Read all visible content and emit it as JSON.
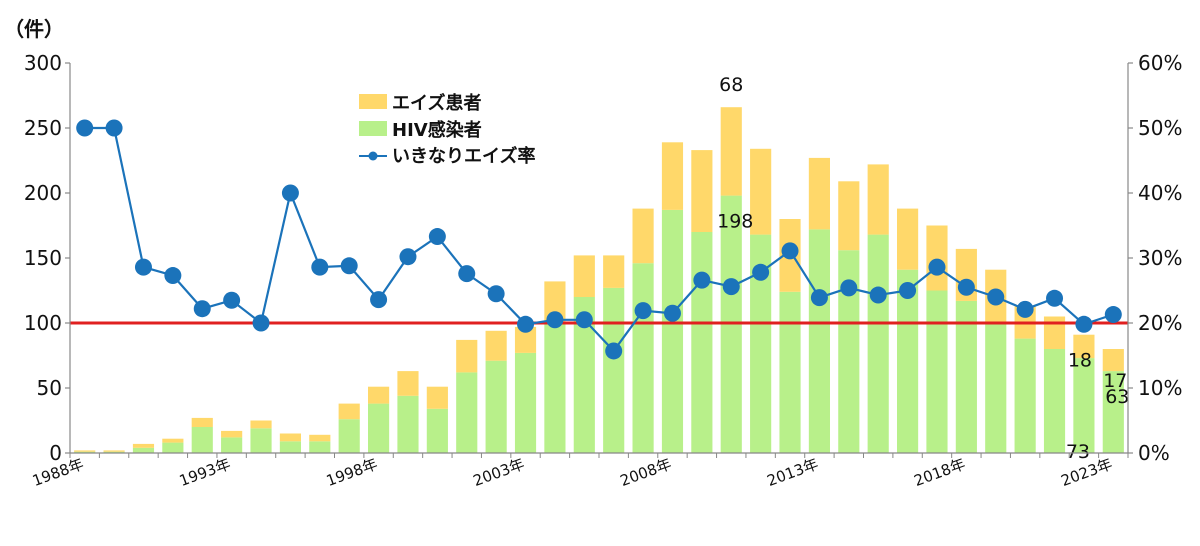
{
  "chart_data": {
    "type": "bar",
    "stacked": true,
    "y_unit_label": "（件）",
    "ylim": [
      0,
      300
    ],
    "y_ticks": [
      "0",
      "50",
      "100",
      "150",
      "200",
      "250",
      "300"
    ],
    "y2lim": [
      0,
      60
    ],
    "y2_ticks": [
      "0%",
      "10%",
      "20%",
      "30%",
      "40%",
      "50%",
      "60%"
    ],
    "x_tick_labels": [
      "1988年",
      "1993年",
      "1998年",
      "2003年",
      "2008年",
      "2013年",
      "2018年",
      "2023年"
    ],
    "categories": [
      "1988",
      "1989",
      "1990",
      "1991",
      "1992",
      "1993",
      "1994",
      "1995",
      "1996",
      "1997",
      "1998",
      "1999",
      "2000",
      "2001",
      "2002",
      "2003",
      "2004",
      "2005",
      "2006",
      "2007",
      "2008",
      "2009",
      "2010",
      "2011",
      "2012",
      "2013",
      "2014",
      "2015",
      "2016",
      "2017",
      "2018",
      "2019",
      "2020",
      "2021",
      "2022",
      "2023"
    ],
    "series": [
      {
        "name": "HIV感染者",
        "color": "#b8f08a",
        "axis": "left",
        "values": [
          1,
          1,
          4,
          8,
          20,
          12,
          19,
          9,
          9,
          26,
          38,
          44,
          34,
          62,
          71,
          77,
          101,
          120,
          127,
          146,
          187,
          170,
          198,
          168,
          124,
          172,
          156,
          168,
          141,
          125,
          117,
          100,
          88,
          80,
          73,
          63
        ]
      },
      {
        "name": "エイズ患者",
        "color": "#ffd86a",
        "axis": "left",
        "values": [
          1,
          1,
          3,
          3,
          7,
          5,
          6,
          6,
          5,
          12,
          13,
          19,
          17,
          25,
          23,
          20,
          31,
          32,
          25,
          42,
          52,
          63,
          68,
          66,
          56,
          55,
          53,
          54,
          47,
          50,
          40,
          41,
          25,
          25,
          18,
          17
        ]
      },
      {
        "name": "いきなりエイズ率",
        "type": "line",
        "color": "#1b73ba",
        "axis": "right",
        "values": [
          50,
          50,
          28.6,
          27.3,
          22.2,
          23.5,
          20,
          40,
          28.6,
          28.8,
          23.6,
          30.2,
          33.3,
          27.6,
          24.5,
          19.8,
          20.5,
          20.5,
          15.7,
          21.9,
          21.5,
          26.6,
          25.6,
          27.8,
          31.1,
          23.9,
          25.4,
          24.3,
          25,
          28.6,
          25.5,
          24,
          22.1,
          23.8,
          19.8,
          21.3
        ]
      }
    ],
    "reference_line": {
      "value": 20,
      "axis": "right",
      "color": "#e02020"
    },
    "data_labels": [
      {
        "text": "68",
        "category": "2010",
        "series": "エイズ患者"
      },
      {
        "text": "198",
        "category": "2010",
        "series": "HIV感染者"
      },
      {
        "text": "18",
        "category": "2022",
        "series": "エイズ患者"
      },
      {
        "text": "17",
        "category": "2023",
        "series": "エイズ患者"
      },
      {
        "text": "73",
        "category": "2022",
        "series": "HIV感染者"
      },
      {
        "text": "63",
        "category": "2023",
        "series": "HIV感染者"
      }
    ],
    "legend_position": "top-center",
    "grid": false
  }
}
